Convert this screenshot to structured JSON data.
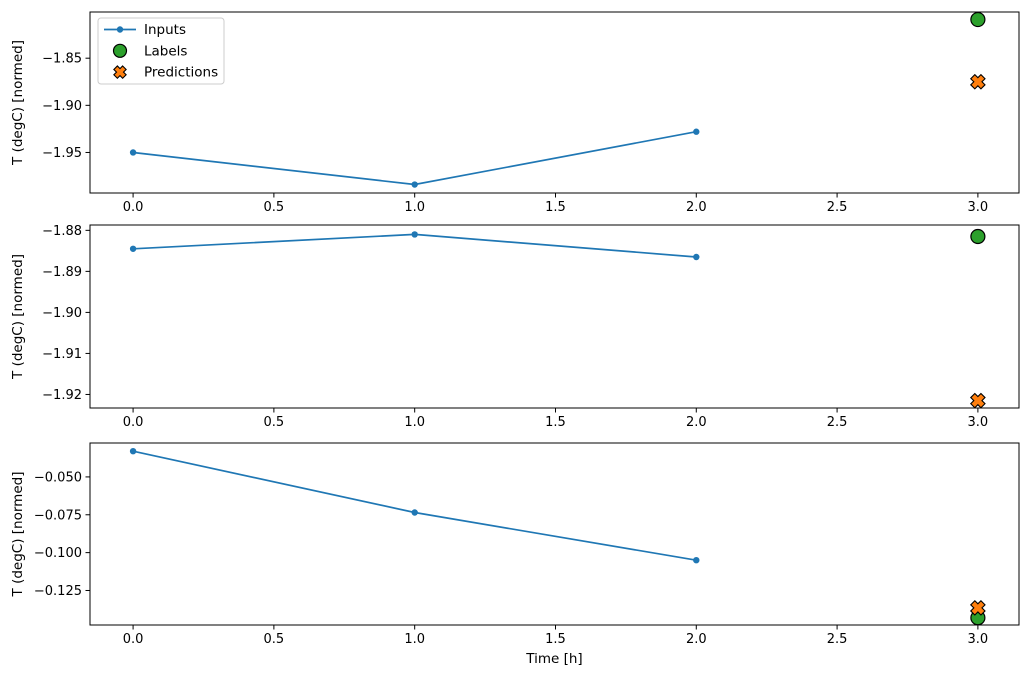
{
  "figure": {
    "background": "#ffffff",
    "xlabel": "Time [h]",
    "ylabel": "T (degC) [normed]",
    "accent_colors": {
      "inputs_blue": "#1f77b4",
      "labels_green": "#2ca02c",
      "predictions_orange": "#ff7f0e",
      "marker_edge": "#000000",
      "legend_border": "#cccccc"
    },
    "legend": {
      "position": "upper left",
      "entries": [
        {
          "label": "Inputs",
          "marker": "line-dot",
          "color": "#1f77b4"
        },
        {
          "label": "Labels",
          "marker": "circle",
          "color": "#2ca02c"
        },
        {
          "label": "Predictions",
          "marker": "x",
          "color": "#ff7f0e"
        }
      ]
    }
  },
  "chart_data": [
    {
      "type": "line",
      "title": "",
      "xlabel": "",
      "ylabel": "T (degC) [normed]",
      "xlim": [
        -0.153,
        3.146
      ],
      "ylim": [
        -1.993,
        -1.801
      ],
      "grid": false,
      "xticks": [
        {
          "v": 0.0,
          "label": "0.0"
        },
        {
          "v": 0.5,
          "label": "0.5"
        },
        {
          "v": 1.0,
          "label": "1.0"
        },
        {
          "v": 1.5,
          "label": "1.5"
        },
        {
          "v": 2.0,
          "label": "2.0"
        },
        {
          "v": 2.5,
          "label": "2.5"
        },
        {
          "v": 3.0,
          "label": "3.0"
        }
      ],
      "yticks": [
        {
          "v": -1.85,
          "label": "−1.85"
        },
        {
          "v": -1.9,
          "label": "−1.90"
        },
        {
          "v": -1.95,
          "label": "−1.95"
        }
      ],
      "series": [
        {
          "name": "Inputs",
          "marker": "dot",
          "line": true,
          "color": "#1f77b4",
          "x": [
            0,
            1,
            2
          ],
          "y": [
            -1.95,
            -1.984,
            -1.928
          ]
        },
        {
          "name": "Labels",
          "marker": "circle",
          "line": false,
          "color": "#2ca02c",
          "x": [
            3
          ],
          "y": [
            -1.809
          ]
        },
        {
          "name": "Predictions",
          "marker": "x",
          "line": false,
          "color": "#ff7f0e",
          "x": [
            3
          ],
          "y": [
            -1.875
          ]
        }
      ]
    },
    {
      "type": "line",
      "title": "",
      "xlabel": "",
      "ylabel": "T (degC) [normed]",
      "xlim": [
        -0.153,
        3.146
      ],
      "ylim": [
        -1.9233,
        -1.8787
      ],
      "grid": false,
      "xticks": [
        {
          "v": 0.0,
          "label": "0.0"
        },
        {
          "v": 0.5,
          "label": "0.5"
        },
        {
          "v": 1.0,
          "label": "1.0"
        },
        {
          "v": 1.5,
          "label": "1.5"
        },
        {
          "v": 2.0,
          "label": "2.0"
        },
        {
          "v": 2.5,
          "label": "2.5"
        },
        {
          "v": 3.0,
          "label": "3.0"
        }
      ],
      "yticks": [
        {
          "v": -1.88,
          "label": "−1.88"
        },
        {
          "v": -1.89,
          "label": "−1.89"
        },
        {
          "v": -1.9,
          "label": "−1.90"
        },
        {
          "v": -1.91,
          "label": "−1.91"
        },
        {
          "v": -1.92,
          "label": "−1.92"
        }
      ],
      "series": [
        {
          "name": "Inputs",
          "marker": "dot",
          "line": true,
          "color": "#1f77b4",
          "x": [
            0,
            1,
            2
          ],
          "y": [
            -1.8845,
            -1.881,
            -1.8865
          ]
        },
        {
          "name": "Labels",
          "marker": "circle",
          "line": false,
          "color": "#2ca02c",
          "x": [
            3
          ],
          "y": [
            -1.8815
          ]
        },
        {
          "name": "Predictions",
          "marker": "x",
          "line": false,
          "color": "#ff7f0e",
          "x": [
            3
          ],
          "y": [
            -1.9215
          ]
        }
      ]
    },
    {
      "type": "line",
      "title": "",
      "xlabel": "Time [h]",
      "ylabel": "T (degC) [normed]",
      "xlim": [
        -0.153,
        3.146
      ],
      "ylim": [
        -0.1478,
        -0.0276
      ],
      "grid": false,
      "xticks": [
        {
          "v": 0.0,
          "label": "0.0"
        },
        {
          "v": 0.5,
          "label": "0.5"
        },
        {
          "v": 1.0,
          "label": "1.0"
        },
        {
          "v": 1.5,
          "label": "1.5"
        },
        {
          "v": 2.0,
          "label": "2.0"
        },
        {
          "v": 2.5,
          "label": "2.5"
        },
        {
          "v": 3.0,
          "label": "3.0"
        }
      ],
      "yticks": [
        {
          "v": -0.05,
          "label": "−0.050"
        },
        {
          "v": -0.075,
          "label": "−0.075"
        },
        {
          "v": -0.1,
          "label": "−0.100"
        },
        {
          "v": -0.125,
          "label": "−0.125"
        }
      ],
      "series": [
        {
          "name": "Inputs",
          "marker": "dot",
          "line": true,
          "color": "#1f77b4",
          "x": [
            0,
            1,
            2
          ],
          "y": [
            -0.033,
            -0.0735,
            -0.105
          ]
        },
        {
          "name": "Labels",
          "marker": "circle",
          "line": false,
          "color": "#2ca02c",
          "x": [
            3
          ],
          "y": [
            -0.143
          ]
        },
        {
          "name": "Predictions",
          "marker": "x",
          "line": false,
          "color": "#ff7f0e",
          "x": [
            3
          ],
          "y": [
            -0.1365
          ]
        }
      ]
    }
  ]
}
